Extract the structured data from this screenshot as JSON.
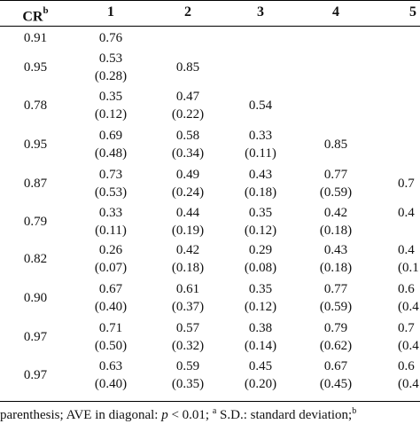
{
  "table": {
    "headers": [
      "CR",
      "1",
      "2",
      "3",
      "4",
      "5"
    ],
    "cr_superscript": "b",
    "rows": [
      {
        "cr": "0.91",
        "cells": [
          [
            "0.76"
          ],
          [],
          [],
          [],
          []
        ]
      },
      {
        "cr": "0.95",
        "cells": [
          [
            "0.53",
            "(0.28)"
          ],
          [
            "0.85"
          ],
          [],
          [],
          []
        ]
      },
      {
        "cr": "0.78",
        "cells": [
          [
            "0.35",
            "(0.12)"
          ],
          [
            "0.47",
            "(0.22)"
          ],
          [
            "0.54"
          ],
          [],
          []
        ]
      },
      {
        "cr": "0.95",
        "cells": [
          [
            "0.69",
            "(0.48)"
          ],
          [
            "0.58",
            "(0.34)"
          ],
          [
            "0.33",
            "(0.11)"
          ],
          [
            "0.85"
          ],
          []
        ]
      },
      {
        "cr": "0.87",
        "cells": [
          [
            "0.73",
            "(0.53)"
          ],
          [
            "0.49",
            "(0.24)"
          ],
          [
            "0.43",
            "(0.18)"
          ],
          [
            "0.77",
            "(0.59)"
          ],
          [
            "0.7"
          ]
        ]
      },
      {
        "cr": "0.79",
        "cells": [
          [
            "0.33",
            "(0.11)"
          ],
          [
            "0.44",
            "(0.19)"
          ],
          [
            "0.35",
            "(0.12)"
          ],
          [
            "0.42",
            "(0.18)"
          ],
          [
            "0.4",
            ""
          ]
        ]
      },
      {
        "cr": "0.82",
        "cells": [
          [
            "0.26",
            "(0.07)"
          ],
          [
            "0.42",
            "(0.18)"
          ],
          [
            "0.29",
            "(0.08)"
          ],
          [
            "0.43",
            "(0.18)"
          ],
          [
            "0.4",
            "(0.1"
          ]
        ]
      },
      {
        "cr": "0.90",
        "cells": [
          [
            "0.67",
            "(0.40)"
          ],
          [
            "0.61",
            "(0.37)"
          ],
          [
            "0.35",
            "(0.12)"
          ],
          [
            "0.77",
            "(0.59)"
          ],
          [
            "0.6",
            "(0.4"
          ]
        ]
      },
      {
        "cr": "0.97",
        "cells": [
          [
            "0.71",
            "(0.50)"
          ],
          [
            "0.57",
            "(0.32)"
          ],
          [
            "0.38",
            "(0.14)"
          ],
          [
            "0.79",
            "(0.62)"
          ],
          [
            "0.7",
            "(0.4"
          ]
        ]
      },
      {
        "cr": "0.97",
        "cells": [
          [
            "0.63",
            "(0.40)"
          ],
          [
            "0.59",
            "(0.35)"
          ],
          [
            "0.45",
            "(0.20)"
          ],
          [
            "0.67",
            "(0.45)"
          ],
          [
            "0.6",
            "(0.4"
          ]
        ]
      }
    ]
  },
  "footnote": {
    "part1": "parenthesis; AVE in diagonal: ",
    "p_symbol": "p",
    "part2": " < 0.01; ",
    "sup_a": "a",
    "part3": " S.D.: standard deviation;",
    "sup_b": "b"
  }
}
